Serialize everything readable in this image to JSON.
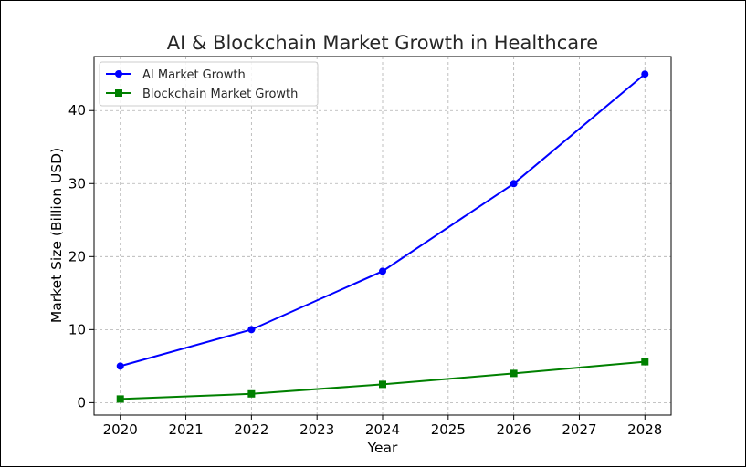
{
  "chart_data": {
    "type": "line",
    "title": "AI & Blockchain Market Growth in Healthcare",
    "xlabel": "Year",
    "ylabel": "Market Size (Billion USD)",
    "x": [
      2020,
      2022,
      2024,
      2026,
      2028
    ],
    "xticks": [
      "2020",
      "2021",
      "2022",
      "2023",
      "2024",
      "2025",
      "2026",
      "2027",
      "2028"
    ],
    "yticks": [
      "0",
      "10",
      "20",
      "30",
      "40"
    ],
    "xlim": [
      2019.6,
      2028.4
    ],
    "ylim": [
      -1.7,
      47.4
    ],
    "grid": true,
    "legend_position": "upper-left",
    "series": [
      {
        "name": "AI Market Growth",
        "values": [
          5,
          10,
          18,
          30,
          45
        ],
        "color": "#0000ff",
        "marker": "circle"
      },
      {
        "name": "Blockchain Market Growth",
        "values": [
          0.5,
          1.2,
          2.5,
          4,
          5.6
        ],
        "color": "#008000",
        "marker": "square"
      }
    ]
  }
}
